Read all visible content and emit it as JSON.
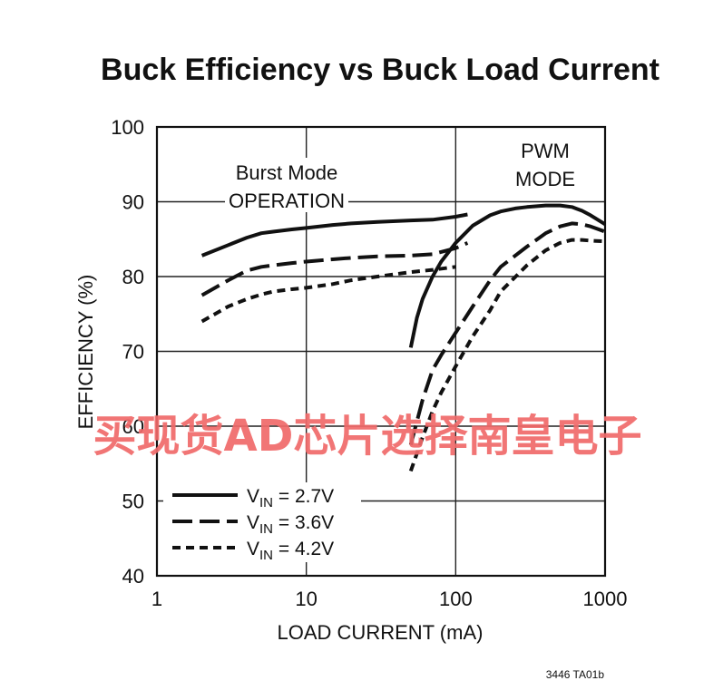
{
  "chart_data": {
    "type": "line",
    "title": "Buck Efficiency vs Buck Load Current",
    "xlabel": "LOAD CURRENT (mA)",
    "ylabel": "EFFICIENCY (%)",
    "x_scale": "log",
    "xlim": [
      1,
      1000
    ],
    "ylim": [
      40,
      100
    ],
    "x_ticks": [
      "1",
      "10",
      "100",
      "1000"
    ],
    "y_ticks": [
      "40",
      "50",
      "60",
      "70",
      "80",
      "90",
      "100"
    ],
    "grid": true,
    "legend_position": "bottom-left",
    "annotations": {
      "burst": [
        "Burst Mode",
        "OPERATION"
      ],
      "pwm": [
        "PWM",
        "MODE"
      ]
    },
    "figure_code": "3446 TA01b",
    "series": [
      {
        "legend_main": "V",
        "legend_sub": "IN",
        "legend_rest": " = 2.7V",
        "dash": "solid",
        "segments": [
          {
            "x": [
              2,
              3,
              4,
              5,
              6,
              8,
              10,
              15,
              20,
              30,
              50,
              70,
              100,
              120
            ],
            "y": [
              82.8,
              84.2,
              85.2,
              85.8,
              86.0,
              86.3,
              86.5,
              86.9,
              87.1,
              87.3,
              87.5,
              87.6,
              88.0,
              88.3
            ]
          },
          {
            "x": [
              50,
              55,
              60,
              70,
              80,
              100,
              130,
              170,
              200,
              250,
              300,
              400,
              500,
              600,
              700,
              800,
              1000
            ],
            "y": [
              70.5,
              74.5,
              77.0,
              80.0,
              82.0,
              84.5,
              86.8,
              88.2,
              88.7,
              89.1,
              89.3,
              89.5,
              89.5,
              89.3,
              88.8,
              88.2,
              87.0
            ]
          }
        ]
      },
      {
        "legend_main": "V",
        "legend_sub": "IN",
        "legend_rest": " = 3.6V",
        "dash": "long-dash",
        "segments": [
          {
            "x": [
              2,
              3,
              4,
              5,
              6,
              8,
              10,
              15,
              20,
              30,
              50,
              70,
              100,
              120
            ],
            "y": [
              77.5,
              79.5,
              80.8,
              81.3,
              81.5,
              81.8,
              82.0,
              82.3,
              82.5,
              82.7,
              82.8,
              83.0,
              83.8,
              84.5
            ]
          },
          {
            "x": [
              50,
              60,
              70,
              80,
              100,
              130,
              170,
              200,
              300,
              400,
              500,
              600,
              700,
              800,
              1000
            ],
            "y": [
              57.5,
              63.5,
              67.5,
              69.5,
              72.5,
              76.0,
              79.5,
              81.3,
              84.0,
              85.8,
              86.7,
              87.1,
              87.0,
              86.7,
              86.0
            ]
          }
        ]
      },
      {
        "legend_main": "V",
        "legend_sub": "IN",
        "legend_rest": " = 4.2V",
        "dash": "short-dash",
        "segments": [
          {
            "x": [
              2,
              3,
              4,
              5,
              6,
              8,
              10,
              15,
              20,
              30,
              50,
              70,
              100
            ],
            "y": [
              74.0,
              76.0,
              77.0,
              77.6,
              78.0,
              78.3,
              78.5,
              79.0,
              79.5,
              80.0,
              80.6,
              80.9,
              81.3
            ]
          },
          {
            "x": [
              50,
              60,
              70,
              80,
              100,
              130,
              170,
              200,
              300,
              400,
              500,
              600,
              700,
              800,
              1000
            ],
            "y": [
              54.0,
              58.5,
              62.0,
              64.5,
              68.0,
              72.0,
              75.5,
              78.0,
              81.5,
              83.5,
              84.5,
              84.9,
              84.9,
              84.8,
              84.7
            ]
          }
        ]
      }
    ]
  },
  "watermark": "买现货AD芯片选择南皇电子",
  "colors": {
    "lines": "#111111",
    "watermark": "#f06a6a",
    "background": "#ffffff"
  }
}
